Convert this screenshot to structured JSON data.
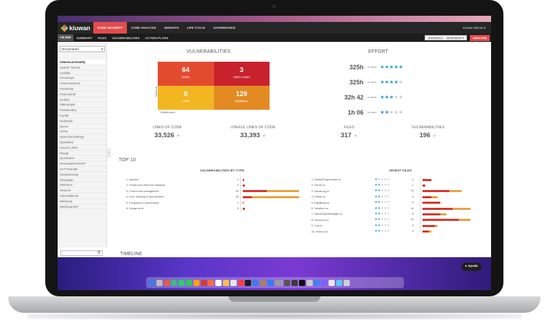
{
  "app": {
    "logo": "kiuwan",
    "nav": [
      "CODE SECURITY",
      "CODE ANALYSIS",
      "INSIGHTS",
      "LIFE CYCLE",
      "GOVERNANCE"
    ],
    "active_nav": 0,
    "user": "Kiuwan demos",
    "subnav": [
      "FILTER",
      "SUMMARY",
      "FILES",
      "VULNERABILITIES",
      "ACTION PLANS"
    ],
    "date_range": "2016/09/14 - 2020/09/20",
    "analyze_label": "ANALYZE",
    "help_label": "Ayuda"
  },
  "sidebar": {
    "group_select": "Not grouped",
    "apps": [
      "AdamsLair.Duality",
      "Apache Tomcat",
      "Audiokit",
      "Checkstyle",
      "Cobol Backend",
      "Facebrake",
      "FindAndroid",
      "Jenkins",
      "f49Example",
      "FaceMonkey",
      "Krystal",
      "Nodestyle",
      "Nuevo",
      "Ocims",
      "OpenChecklistApp",
      "OpenMRS",
      "OSSAR_RPG",
      "Pesapi",
      "QuickSilver",
      "RenewableTestXXP",
      "SAP Example",
      "SharpDevelop",
      "SharpMap",
      "SMSSync",
      "TestLink",
      "VulnerableLab",
      "WebGoat",
      "WebGoat.NET"
    ],
    "selected_index": 0
  },
  "vulnerabilities": {
    "title": "VULNERABILITIES",
    "grid": [
      {
        "value": "64",
        "label": "HIGH",
        "color": "#e34b2f"
      },
      {
        "value": "3",
        "label": "VERY HIGH",
        "color": "#c8222d"
      },
      {
        "value": "0",
        "label": "LOW",
        "color": "#f2b622"
      },
      {
        "value": "129",
        "label": "NORMAL",
        "color": "#e38a22"
      }
    ],
    "y_axis": "Impact",
    "x_axis": "Likelihood"
  },
  "effort": {
    "title": "EFFORT",
    "reach_label": "to reach",
    "rows": [
      {
        "value": "325h",
        "stars": 5
      },
      {
        "value": "325h",
        "stars": 4
      },
      {
        "value": "32h 42",
        "stars": 3
      },
      {
        "value": "1h 06",
        "stars": 2
      }
    ]
  },
  "metrics": [
    {
      "label": "LINES OF CODE",
      "value": "33,526"
    },
    {
      "label": "USEFUL LINES OF CODE",
      "value": "33,393"
    },
    {
      "label": "FILES",
      "value": "317"
    },
    {
      "label": "VULNERABILITIES",
      "value": "196"
    }
  ],
  "top10": {
    "title": "TOP 10",
    "by_type": {
      "title": "VULNERABILITIES BY TYPE",
      "rows": [
        {
          "name": "1. Injection",
          "count": "2",
          "red": 2,
          "orange": 0
        },
        {
          "name": "2. Pointer and reference handling",
          "count": "3",
          "red": 3,
          "orange": 0
        },
        {
          "name": "3. Control flow management",
          "count": "93",
          "red": 40,
          "orange": 53
        },
        {
          "name": "4. Error handling & fault isolation",
          "count": "93",
          "red": 15,
          "orange": 78
        },
        {
          "name": "5. Encryption & randomness",
          "count": "1",
          "red": 1,
          "orange": 0
        },
        {
          "name": "6. Design error",
          "count": "3",
          "red": 3,
          "orange": 0
        }
      ]
    },
    "worst_files": {
      "title": "WORST FILES",
      "rows": [
        {
          "name": "1. DefaultPluginLoader.cs",
          "count": "3",
          "stars": 1,
          "red": 3,
          "orange": 0
        },
        {
          "name": "2. Scene.cs",
          "count": "1",
          "stars": 2,
          "red": 1,
          "orange": 0
        },
        {
          "name": "3. VisualLog.cs",
          "count": "13",
          "stars": 2,
          "red": 9,
          "orange": 4
        },
        {
          "name": "4. Prefab.cs",
          "count": "5",
          "stars": 2,
          "red": 3,
          "orange": 2
        },
        {
          "name": "5. RigidBody.cs",
          "count": "6",
          "stars": 2,
          "red": 6,
          "orange": 0
        },
        {
          "name": "6. Serializer.cs",
          "count": "16",
          "stars": 2,
          "red": 10,
          "orange": 6
        },
        {
          "name": "7. GameObjectManager.cs",
          "count": "8",
          "stars": 2,
          "red": 6,
          "orange": 2
        },
        {
          "name": "8. Resource.cs",
          "count": "16",
          "stars": 2,
          "red": 12,
          "orange": 4
        },
        {
          "name": "9. Log.cs",
          "count": "5",
          "stars": 2,
          "red": 4,
          "orange": 1
        },
        {
          "name": "10. Texture.cs",
          "count": "3",
          "stars": 2,
          "red": 2,
          "orange": 1
        }
      ]
    }
  },
  "timeline_title": "TIMELINE",
  "colors": {
    "accent": "#e34b4b",
    "star": "#2aa0c8",
    "star_off": "#cccccc",
    "bar_red": "#d8342c",
    "bar_orange": "#e8a23a"
  },
  "dock_icons": [
    "#3d7be8",
    "#bbbbbb",
    "#e55b4d",
    "#42b883",
    "#2ecc71",
    "#34c759",
    "#ff9f0a",
    "#d33b3b",
    "#ff6b3d",
    "#ffffff",
    "#f2c14e",
    "#e8e8e8",
    "#fc3c44",
    "#1d1d1d",
    "#3d7be8",
    "#a2845e",
    "#2f80ed",
    "#9b9b9b",
    "#e0e0e0",
    "#555555",
    "#3a3a3a",
    "#0f0f0f",
    "#c8c8c8",
    "#3b82f6",
    "#7b61ff",
    "#e8e8e8",
    "#5ac8fa",
    "#d0d0d0"
  ]
}
